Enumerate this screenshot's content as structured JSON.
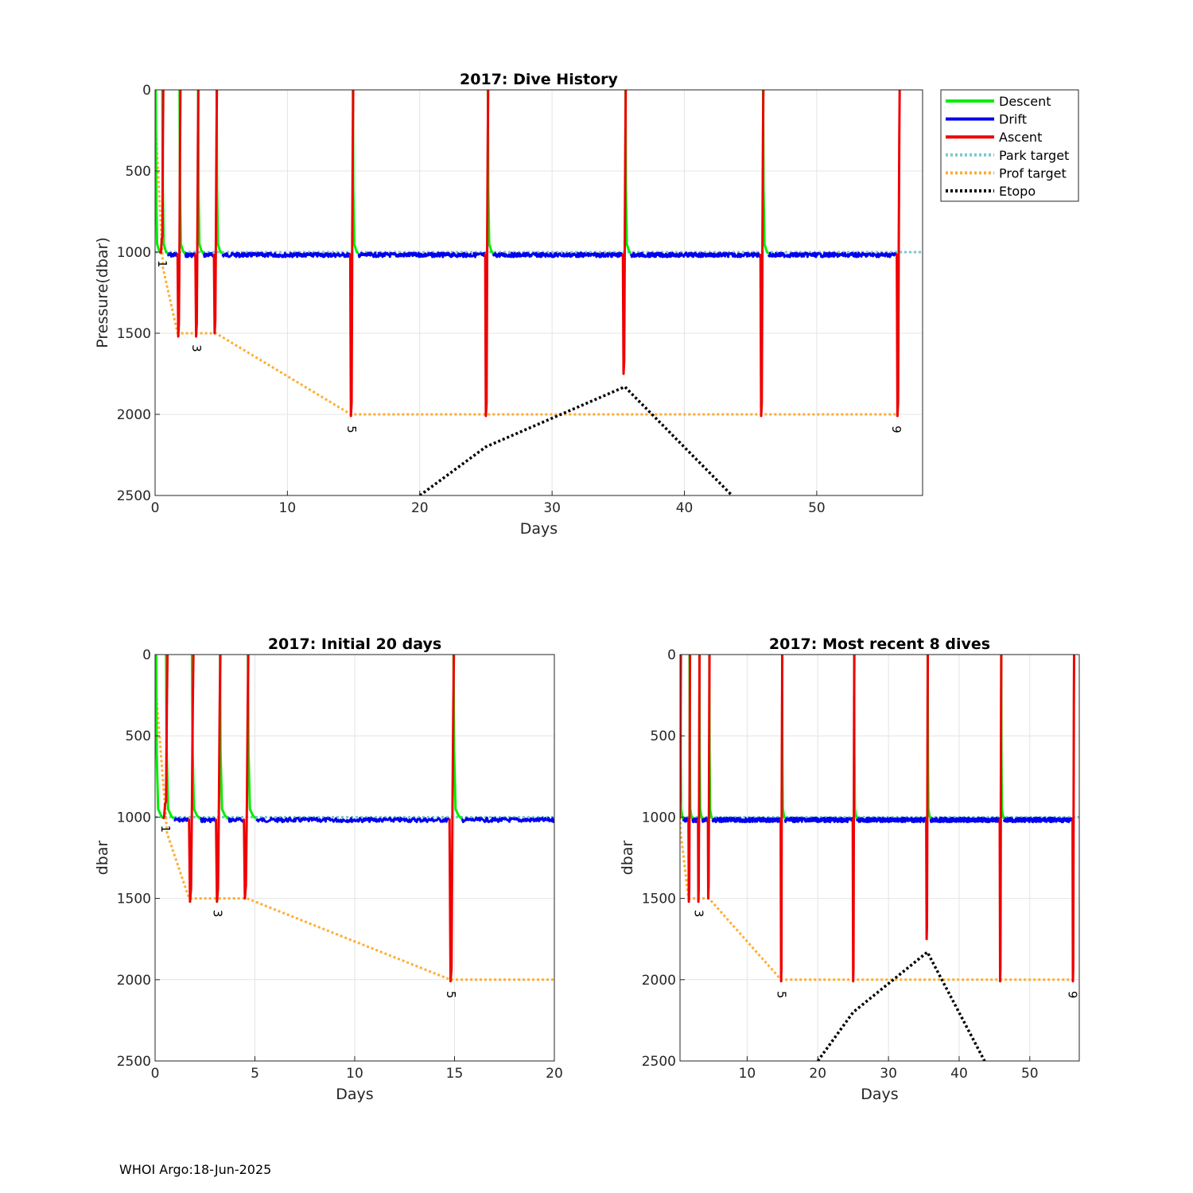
{
  "footer": "WHOI Argo:18-Jun-2025",
  "colors": {
    "descent": "#00ee00",
    "drift": "#0000ee",
    "ascent": "#ee0000",
    "park_target": "#7fc8c8",
    "prof_target": "#ffad33",
    "etopo": "#000000",
    "grid": "#e4e4e4"
  },
  "legend": [
    {
      "label": "Descent",
      "series": "descent",
      "style": "solid"
    },
    {
      "label": "Drift",
      "series": "drift",
      "style": "solid"
    },
    {
      "label": "Ascent",
      "series": "ascent",
      "style": "solid"
    },
    {
      "label": "Park target",
      "series": "park_target",
      "style": "dotted"
    },
    {
      "label": "Prof target",
      "series": "prof_target",
      "style": "dotted"
    },
    {
      "label": "Etopo",
      "series": "etopo",
      "style": "dotted"
    }
  ],
  "chart_data": [
    {
      "id": "dive-history",
      "type": "line",
      "title": "2017: Dive History",
      "xlabel": "Days",
      "ylabel": "Pressure(dbar)",
      "xlim": [
        0,
        58
      ],
      "ylim": [
        0,
        2500
      ],
      "y_reversed": true,
      "xticks": [
        0,
        10,
        20,
        30,
        40,
        50
      ],
      "yticks": [
        0,
        500,
        1000,
        1500,
        2000,
        2500
      ],
      "grid": true,
      "legend": "outside-right",
      "dive_labels": [
        {
          "day": 0.5,
          "p": 1010,
          "label": "1"
        },
        {
          "day": 3.1,
          "p": 1530,
          "label": "3"
        },
        {
          "day": 14.8,
          "p": 2030,
          "label": "5"
        },
        {
          "day": 56.0,
          "p": 2030,
          "label": "9"
        }
      ]
    },
    {
      "id": "initial-20-days",
      "type": "line",
      "title": "2017: Initial 20 days",
      "xlabel": "Days",
      "ylabel": "dbar",
      "xlim": [
        0,
        20
      ],
      "ylim": [
        0,
        2500
      ],
      "y_reversed": true,
      "xticks": [
        0,
        5,
        10,
        15,
        20
      ],
      "yticks": [
        0,
        500,
        1000,
        1500,
        2000,
        2500
      ],
      "grid": true,
      "dive_labels": [
        {
          "day": 0.5,
          "p": 1010,
          "label": "1"
        },
        {
          "day": 3.1,
          "p": 1530,
          "label": "3"
        },
        {
          "day": 14.8,
          "p": 2030,
          "label": "5"
        }
      ]
    },
    {
      "id": "most-recent-8",
      "type": "line",
      "title": "2017: Most recent 8 dives",
      "xlabel": "Days",
      "ylabel": "dbar",
      "xlim": [
        0.5,
        57
      ],
      "ylim": [
        0,
        2500
      ],
      "y_reversed": true,
      "xticks": [
        10,
        20,
        30,
        40,
        50
      ],
      "yticks": [
        0,
        500,
        1000,
        1500,
        2000,
        2500
      ],
      "grid": true,
      "dive_labels": [
        {
          "day": 3.1,
          "p": 1530,
          "label": "3"
        },
        {
          "day": 14.8,
          "p": 2030,
          "label": "5"
        },
        {
          "day": 56.0,
          "p": 2030,
          "label": "9"
        }
      ]
    }
  ],
  "series": {
    "park_target": [
      [
        0,
        1000
      ],
      [
        58,
        1000
      ]
    ],
    "prof_target": [
      [
        0,
        150
      ],
      [
        0.6,
        1100
      ],
      [
        1.7,
        1500
      ],
      [
        4.6,
        1500
      ],
      [
        14.8,
        2000
      ],
      [
        56.2,
        2000
      ]
    ],
    "etopo": [
      [
        20,
        2500
      ],
      [
        25,
        2200
      ],
      [
        35.5,
        1830
      ],
      [
        43.6,
        2500
      ]
    ],
    "dives": [
      {
        "start": 0.0,
        "end": 0.45,
        "profile": 1000
      },
      {
        "start": 0.5,
        "end": 1.75,
        "profile": 1520
      },
      {
        "start": 1.8,
        "end": 3.1,
        "profile": 1520
      },
      {
        "start": 3.2,
        "end": 4.5,
        "profile": 1500
      },
      {
        "start": 4.6,
        "end": 14.8,
        "profile": 2010
      },
      {
        "start": 14.9,
        "end": 25.0,
        "profile": 2010
      },
      {
        "start": 25.1,
        "end": 35.4,
        "profile": 1750
      },
      {
        "start": 35.5,
        "end": 45.8,
        "profile": 2010
      },
      {
        "start": 45.9,
        "end": 56.1,
        "profile": 2010
      }
    ]
  }
}
